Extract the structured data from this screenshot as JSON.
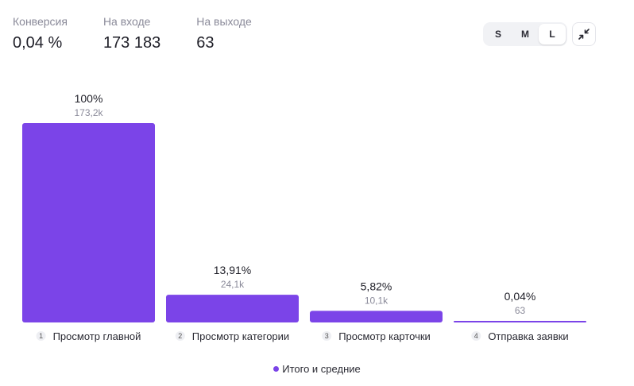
{
  "stats": [
    {
      "label": "Конверсия",
      "value": "0,04 %"
    },
    {
      "label": "На входе",
      "value": "173 183"
    },
    {
      "label": "На выходе",
      "value": "63"
    }
  ],
  "size_switch": {
    "options": [
      "S",
      "M",
      "L"
    ],
    "selected": "L"
  },
  "collapse_icon": "collapse-arrows-icon",
  "colors": {
    "bar": "#7b44e8",
    "step_circle": "#eeeff3"
  },
  "chart_data": {
    "type": "bar",
    "categories": [
      "Просмотр главной",
      "Просмотр категории",
      "Просмотр карточки",
      "Отправка заявки"
    ],
    "step_numbers": [
      "1",
      "2",
      "3",
      "4"
    ],
    "values": [
      100,
      13.91,
      5.82,
      0.04
    ],
    "value_labels": [
      "100%",
      "13,91%",
      "5,82%",
      "0,04%"
    ],
    "absolute_labels": [
      "173,2k",
      "24,1k",
      "10,1k",
      "63"
    ],
    "ylim": [
      0,
      100
    ],
    "grid": false,
    "legend": {
      "position": "bottom-center",
      "entries": [
        "Итого и средние"
      ]
    }
  }
}
